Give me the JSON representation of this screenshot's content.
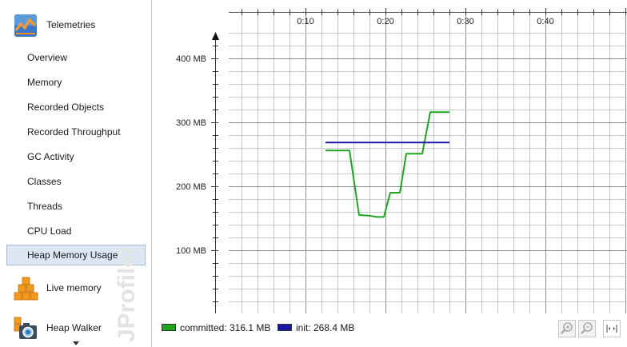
{
  "sidebar": {
    "sections": [
      {
        "label": "Telemetries",
        "icon": "telemetries-icon"
      },
      {
        "label": "Live memory",
        "icon": "live-memory-icon"
      },
      {
        "label": "Heap Walker",
        "icon": "heap-walker-icon"
      }
    ],
    "items": [
      {
        "label": "Overview"
      },
      {
        "label": "Memory"
      },
      {
        "label": "Recorded Objects"
      },
      {
        "label": "Recorded Throughput"
      },
      {
        "label": "GC Activity"
      },
      {
        "label": "Classes"
      },
      {
        "label": "Threads"
      },
      {
        "label": "CPU Load"
      },
      {
        "label": "Heap Memory Usage",
        "selected": true
      }
    ],
    "watermark": "JProfiler"
  },
  "legend": [
    {
      "label": "committed: 316.1 MB",
      "color": "#1fa61f"
    },
    {
      "label": "init: 268.4 MB",
      "color": "#1a1aa6"
    }
  ],
  "toolbar": {
    "icons": [
      "zoom-in-icon",
      "zoom-out-icon",
      "fit-width-icon"
    ]
  },
  "chart_data": {
    "type": "line",
    "x_unit": "elapsed time (m:ss)",
    "y_unit": "MB",
    "xlim": [
      "0:00",
      "0:50"
    ],
    "ylim": [
      0,
      450
    ],
    "x_ticks": [
      "0:10",
      "0:20",
      "0:30",
      "0:40"
    ],
    "y_ticks": [
      "100 MB",
      "200 MB",
      "300 MB",
      "400 MB"
    ],
    "grid": true,
    "series": [
      {
        "name": "committed",
        "color": "#1fa61f",
        "points": [
          [
            "0:12.5",
            256
          ],
          [
            "0:15.5",
            256
          ],
          [
            "0:16.7",
            155
          ],
          [
            "0:18",
            154
          ],
          [
            "0:19",
            152
          ],
          [
            "0:19.8",
            152
          ],
          [
            "0:20.6",
            190
          ],
          [
            "0:21.8",
            190
          ],
          [
            "0:22.6",
            251
          ],
          [
            "0:24.6",
            251
          ],
          [
            "0:25.6",
            316
          ],
          [
            "0:28",
            316
          ]
        ]
      },
      {
        "name": "init",
        "color": "#1a1aa6",
        "points": [
          [
            "0:12.5",
            268.4
          ],
          [
            "0:28",
            268.4
          ]
        ]
      }
    ]
  }
}
